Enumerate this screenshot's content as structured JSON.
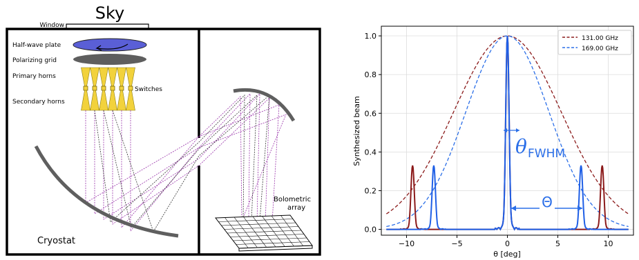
{
  "diagram": {
    "sky_label": "Sky",
    "window_label": "Window",
    "cryostat_label": "Cryostat",
    "components": {
      "hwp": "Half-wave plate",
      "grid": "Polarizing grid",
      "primary": "Primary horns",
      "switches": "Switches",
      "secondary": "Secondary horns"
    },
    "bolometer_label_line1": "Bolometric",
    "bolometer_label_line2": "array",
    "colors": {
      "wall": "#000000",
      "mirror": "#5f5f5f",
      "hwp": "#5a5fd6",
      "grid": "#5e5e5e",
      "horn": "#f2d23c",
      "ray_purple": "#9933aa",
      "ray_dark": "#333333"
    }
  },
  "chart_data": {
    "type": "line",
    "xlabel": "θ [deg]",
    "ylabel": "Synthesized beam",
    "xlim": [
      -12.5,
      12.5
    ],
    "ylim": [
      -0.03,
      1.05
    ],
    "xticks": [
      -10,
      -5,
      0,
      5,
      10
    ],
    "xtick_labels": [
      "−10",
      "−5",
      "0",
      "5",
      "10"
    ],
    "yticks": [
      0.0,
      0.2,
      0.4,
      0.6,
      0.8,
      1.0
    ],
    "ytick_labels": [
      "0.0",
      "0.2",
      "0.4",
      "0.6",
      "0.8",
      "1.0"
    ],
    "grid": true,
    "legend_position": "top-right",
    "series": [
      {
        "name": "131.00 GHz",
        "style": "dashed",
        "color": "#8b1a1a",
        "sigma_deg": 5.34
      },
      {
        "name": "169.00 GHz",
        "style": "dashed",
        "color": "#2a6ee8",
        "sigma_deg": 4.13
      },
      {
        "name": "",
        "style": "solid",
        "color": "#8b1a1a",
        "peaks": [
          {
            "x": -9.4,
            "y": 0.33
          },
          {
            "x": 0.0,
            "y": 1.0
          },
          {
            "x": 9.4,
            "y": 0.33
          }
        ],
        "x_range": [
          -12,
          12
        ]
      },
      {
        "name": "",
        "style": "solid",
        "color": "#1f5fe6",
        "peaks": [
          {
            "x": -7.3,
            "y": 0.33
          },
          {
            "x": 0.0,
            "y": 1.0
          },
          {
            "x": 7.3,
            "y": 0.33
          }
        ],
        "x_range": [
          -12,
          12
        ]
      }
    ],
    "annotations": {
      "fwhm_symbol": "θ",
      "fwhm_subscript": "FWHM",
      "spacing_symbol": "Θ",
      "color": "#2a6ee8"
    }
  }
}
